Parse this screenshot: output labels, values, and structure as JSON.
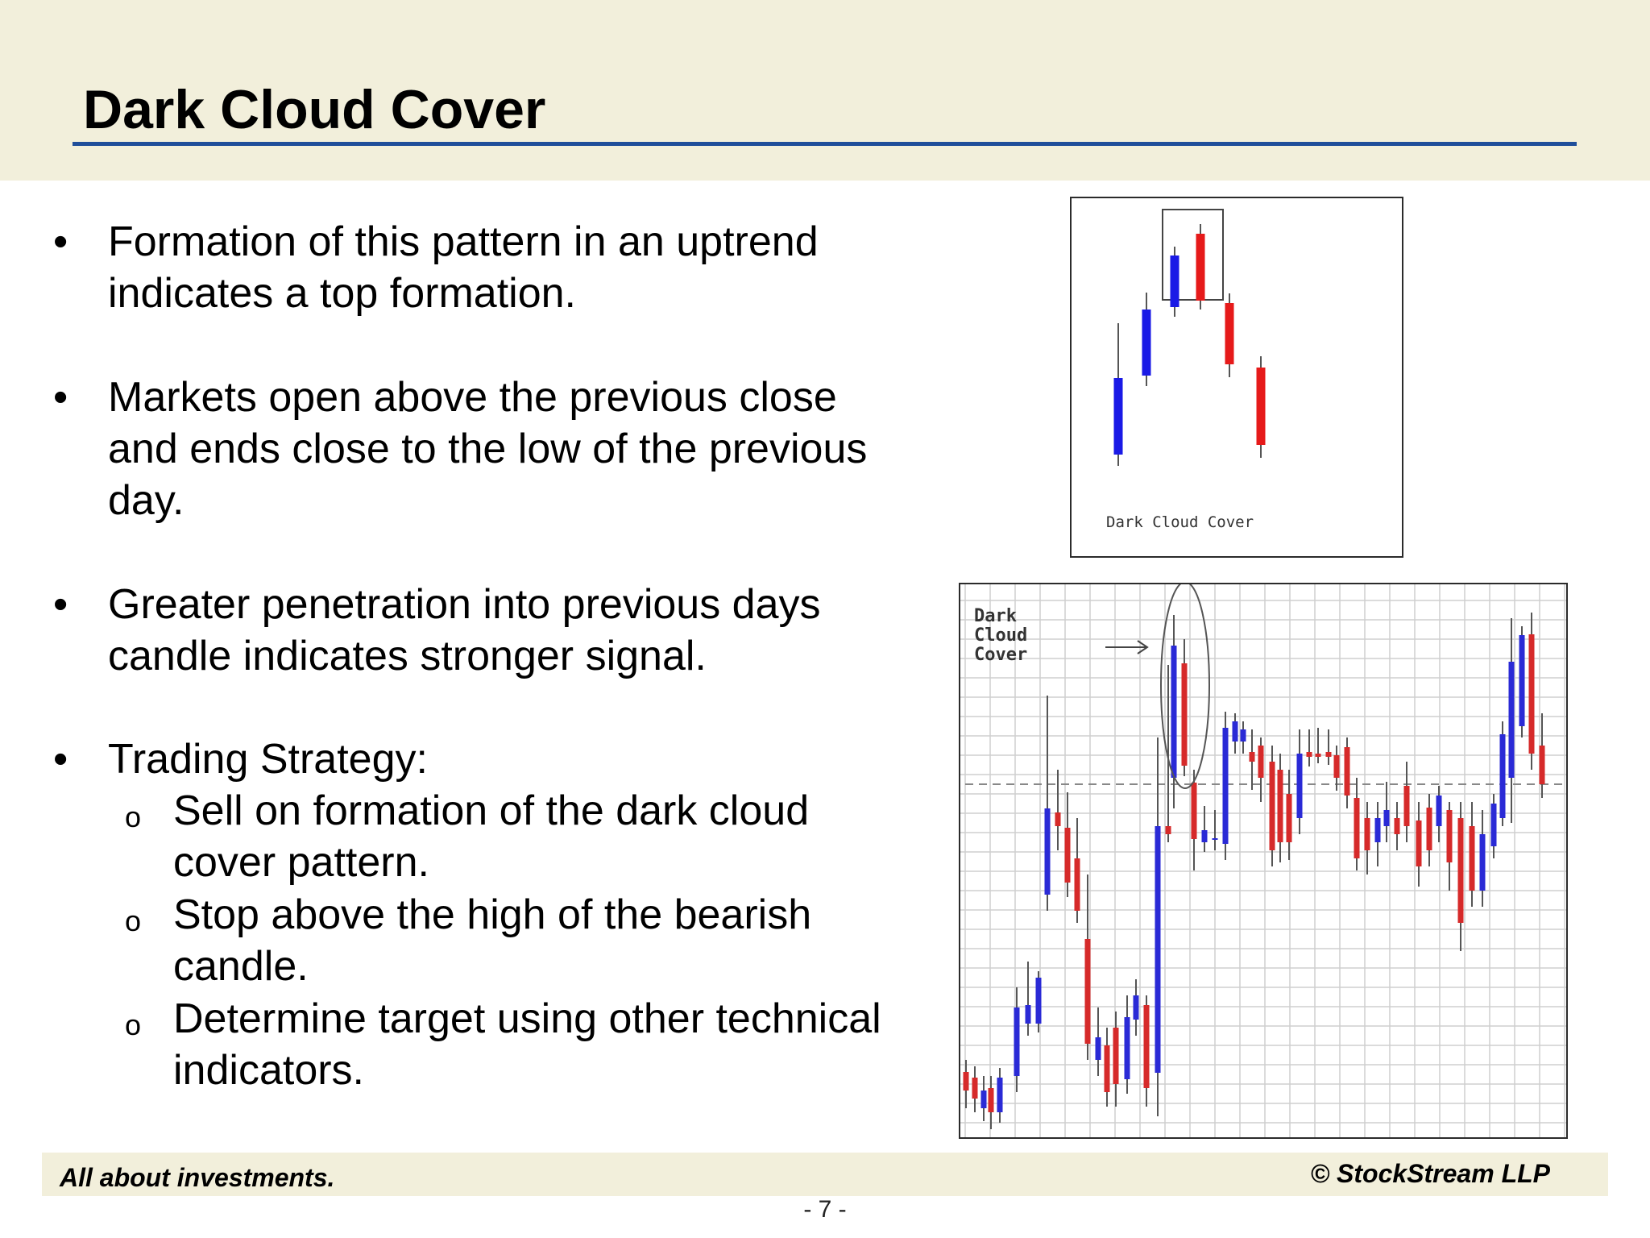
{
  "slide": {
    "title": "Dark Cloud Cover",
    "bullets": [
      "Formation of this pattern in an uptrend indicates a top formation.",
      "Markets open above the previous close and ends close to the low of the previous day.",
      "Greater penetration into previous days candle indicates stronger signal.",
      "Trading Strategy:"
    ],
    "bullet_symbol": "•",
    "sub_symbol": "o",
    "sub_bullets": [
      "Sell on formation of the dark cloud cover pattern.",
      "Stop above the high of the bearish candle.",
      "Determine target using other technical indicators."
    ]
  },
  "small_chart": {
    "caption": "Dark Cloud Cover",
    "colors": {
      "bull": "#1a1ae6",
      "bear": "#e61a1a",
      "box": "#444444"
    }
  },
  "big_chart": {
    "label_lines": [
      "Dark",
      "Cloud",
      "Cover"
    ],
    "colors": {
      "bull": "#2a2ad6",
      "bear": "#d62a2a",
      "grid": "#cfcfcf",
      "dashed": "#888888"
    }
  },
  "footer": {
    "left": "All about investments.",
    "right": "© StockStream LLP",
    "page": "- 7 -"
  }
}
